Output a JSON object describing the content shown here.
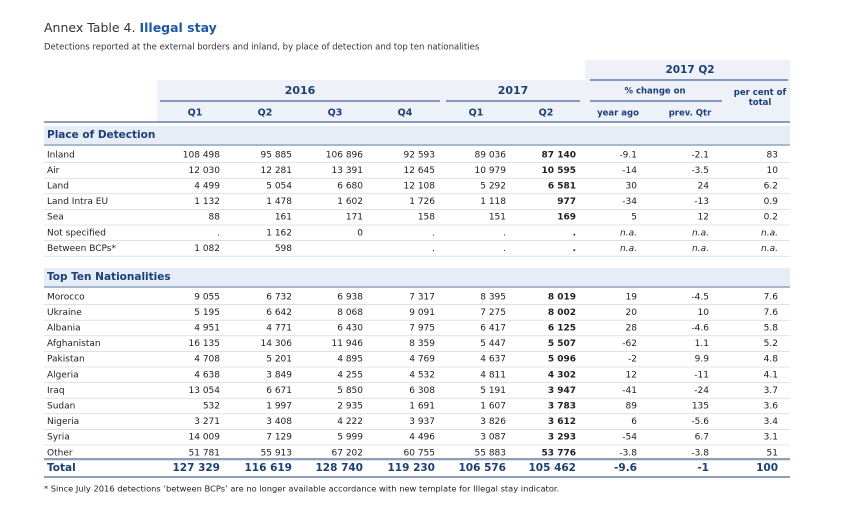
{
  "header": {
    "title_prefix": "Annex Table 4.",
    "title": "Illegal stay",
    "subtitle": "Detections reported at the external borders and inland, by place of detection and top ten nationalities",
    "group": "2017 Q2",
    "years": [
      "2016",
      "2017"
    ],
    "change_label": "% change on",
    "share_label": "per cent of total",
    "columns": [
      "Q1",
      "Q2",
      "Q3",
      "Q4",
      "Q1",
      "Q2",
      "year ago",
      "prev. Qtr"
    ]
  },
  "sections": [
    {
      "title": "Place of Detection",
      "rows": [
        {
          "label": "Inland",
          "cells": [
            "108 498",
            "95 885",
            "106 896",
            "92 593",
            "89 036",
            "87 140",
            "-9.1",
            "-2.1",
            "83"
          ]
        },
        {
          "label": "Air",
          "cells": [
            "12 030",
            "12 281",
            "13 391",
            "12 645",
            "10 979",
            "10 595",
            "-14",
            "-3.5",
            "10"
          ]
        },
        {
          "label": "Land",
          "cells": [
            "4 499",
            "5 054",
            "6 680",
            "12 108",
            "5 292",
            "6 581",
            "30",
            "24",
            "6.2"
          ]
        },
        {
          "label": "Land Intra EU",
          "cells": [
            "1 132",
            "1 478",
            "1 602",
            "1 726",
            "1 118",
            "977",
            "-34",
            "-13",
            "0.9"
          ]
        },
        {
          "label": "Sea",
          "cells": [
            "88",
            "161",
            "171",
            "158",
            "151",
            "169",
            "5",
            "12",
            "0.2"
          ]
        },
        {
          "label": "Not specified",
          "cells": [
            ".",
            "1 162",
            "0",
            ".",
            ".",
            ".",
            "n.a.",
            "n.a.",
            "n.a."
          ]
        },
        {
          "label": "Between BCPs*",
          "cells": [
            "1 082",
            "598",
            null,
            ".",
            ".",
            ".",
            "n.a.",
            "n.a.",
            "n.a."
          ]
        }
      ]
    },
    {
      "title": "Top Ten Nationalities",
      "rows": [
        {
          "label": "Morocco",
          "cells": [
            "9 055",
            "6 732",
            "6 938",
            "7 317",
            "8 395",
            "8 019",
            "19",
            "-4.5",
            "7.6"
          ]
        },
        {
          "label": "Ukraine",
          "cells": [
            "5 195",
            "6 642",
            "8 068",
            "9 091",
            "7 275",
            "8 002",
            "20",
            "10",
            "7.6"
          ]
        },
        {
          "label": "Albania",
          "cells": [
            "4 951",
            "4 771",
            "6 430",
            "7 975",
            "6 417",
            "6 125",
            "28",
            "-4.6",
            "5.8"
          ]
        },
        {
          "label": "Afghanistan",
          "cells": [
            "16 135",
            "14 306",
            "11 946",
            "8 359",
            "5 447",
            "5 507",
            "-62",
            "1.1",
            "5.2"
          ]
        },
        {
          "label": "Pakistan",
          "cells": [
            "4 708",
            "5 201",
            "4 895",
            "4 769",
            "4 637",
            "5 096",
            "-2",
            "9.9",
            "4.8"
          ]
        },
        {
          "label": "Algeria",
          "cells": [
            "4 638",
            "3 849",
            "4 255",
            "4 532",
            "4 811",
            "4 302",
            "12",
            "-11",
            "4.1"
          ]
        },
        {
          "label": "Iraq",
          "cells": [
            "13 054",
            "6 671",
            "5 850",
            "6 308",
            "5 191",
            "3 947",
            "-41",
            "-24",
            "3.7"
          ]
        },
        {
          "label": "Sudan",
          "cells": [
            "532",
            "1 997",
            "2 935",
            "1 691",
            "1 607",
            "3 783",
            "89",
            "135",
            "3.6"
          ]
        },
        {
          "label": "Nigeria",
          "cells": [
            "3 271",
            "3 408",
            "4 222",
            "3 937",
            "3 826",
            "3 612",
            "6",
            "-5.6",
            "3.4"
          ]
        },
        {
          "label": "Syria",
          "cells": [
            "14 009",
            "7 129",
            "5 999",
            "4 496",
            "3 087",
            "3 293",
            "-54",
            "6.7",
            "3.1"
          ]
        },
        {
          "label": "Other",
          "cells": [
            "51 781",
            "55 913",
            "67 202",
            "60 755",
            "55 883",
            "53 776",
            "-3.8",
            "-3.8",
            "51"
          ]
        }
      ]
    }
  ],
  "total": {
    "label": "Total",
    "cells": [
      "127 329",
      "116 619",
      "128 740",
      "119 230",
      "106 576",
      "105 462",
      "-9.6",
      "-1",
      "100"
    ]
  },
  "footnote": "* Since July 2016 detections ‘between BCPs’ are no longer available accordance with new template for Illegal stay indicator."
}
